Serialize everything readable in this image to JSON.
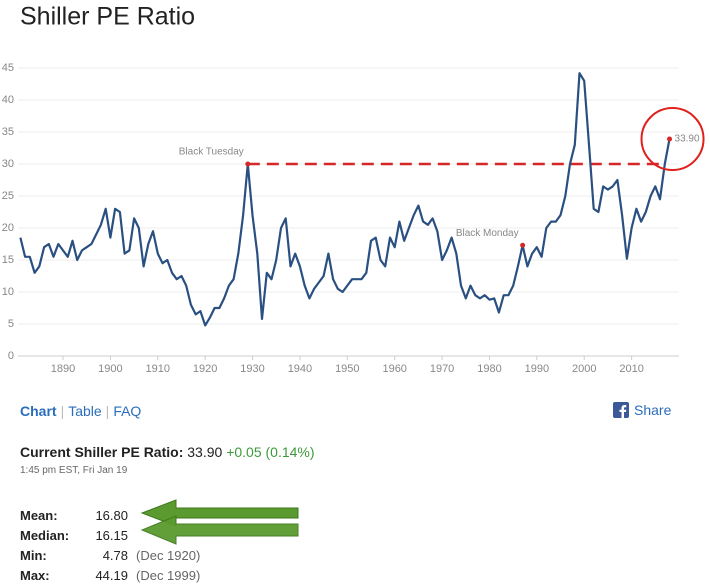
{
  "chart_data": {
    "type": "line",
    "title": "Shiller PE Ratio",
    "x": [
      1881,
      1882,
      1883,
      1884,
      1885,
      1886,
      1887,
      1888,
      1889,
      1890,
      1891,
      1892,
      1893,
      1894,
      1895,
      1896,
      1897,
      1898,
      1899,
      1900,
      1901,
      1902,
      1903,
      1904,
      1905,
      1906,
      1907,
      1908,
      1909,
      1910,
      1911,
      1912,
      1913,
      1914,
      1915,
      1916,
      1917,
      1918,
      1919,
      1920,
      1921,
      1922,
      1923,
      1924,
      1925,
      1926,
      1927,
      1928,
      1929,
      1930,
      1931,
      1932,
      1933,
      1934,
      1935,
      1936,
      1937,
      1938,
      1939,
      1940,
      1941,
      1942,
      1943,
      1944,
      1945,
      1946,
      1947,
      1948,
      1949,
      1950,
      1951,
      1952,
      1953,
      1954,
      1955,
      1956,
      1957,
      1958,
      1959,
      1960,
      1961,
      1962,
      1963,
      1964,
      1965,
      1966,
      1967,
      1968,
      1969,
      1970,
      1971,
      1972,
      1973,
      1974,
      1975,
      1976,
      1977,
      1978,
      1979,
      1980,
      1981,
      1982,
      1983,
      1984,
      1985,
      1986,
      1987,
      1988,
      1989,
      1990,
      1991,
      1992,
      1993,
      1994,
      1995,
      1996,
      1997,
      1998,
      1999,
      2000,
      2001,
      2002,
      2003,
      2004,
      2005,
      2006,
      2007,
      2008,
      2009,
      2010,
      2011,
      2012,
      2013,
      2014,
      2015,
      2016,
      2017,
      2018
    ],
    "values": [
      18.5,
      15.5,
      15.5,
      13,
      14,
      17,
      17.5,
      15.5,
      17.5,
      16.5,
      15.5,
      18,
      15,
      16.5,
      17,
      17.5,
      19,
      20.5,
      23,
      18.5,
      23,
      22.5,
      16,
      16.5,
      21.5,
      20,
      14,
      17.5,
      19.5,
      16,
      14.5,
      15,
      13,
      12,
      12.5,
      11,
      8,
      6.5,
      7,
      4.78,
      6,
      7.5,
      7.5,
      9,
      11,
      12,
      16,
      22,
      30,
      22,
      16,
      5.8,
      13,
      12,
      15,
      20,
      21.5,
      14,
      16,
      14,
      11,
      9,
      10.5,
      11.5,
      12.5,
      16,
      12,
      10.5,
      10,
      11,
      12,
      12,
      12,
      13,
      18,
      18.5,
      15,
      14,
      18.5,
      17,
      21,
      18,
      20,
      22,
      23.5,
      21,
      20.5,
      21.5,
      19.5,
      15,
      16.5,
      18.5,
      16,
      11,
      9,
      11,
      9.5,
      9,
      9.5,
      8.8,
      9,
      6.8,
      9.5,
      9.5,
      11,
      14,
      17.3,
      14,
      16,
      17,
      15.5,
      20,
      21,
      21,
      22,
      25,
      30,
      33,
      44.19,
      43,
      33,
      23,
      22.5,
      26.5,
      26,
      26.5,
      27.5,
      22,
      15.2,
      20,
      23,
      21,
      22.5,
      25,
      26.5,
      24.5,
      30,
      33.9
    ],
    "value_labels": [
      null,
      null,
      null,
      null,
      null,
      null,
      null,
      null,
      null,
      null,
      null,
      null,
      null,
      null,
      null,
      null,
      null,
      null,
      null,
      null,
      null,
      null,
      null,
      null,
      null,
      null,
      null,
      null,
      null,
      null,
      null,
      null,
      null,
      null,
      null,
      null,
      null,
      null,
      null,
      null,
      null,
      null,
      null,
      null,
      null,
      null,
      null,
      null,
      null,
      null,
      null,
      null,
      null,
      null,
      null,
      null,
      null,
      null,
      null,
      null,
      null,
      null,
      null,
      null,
      null,
      null,
      null,
      null,
      null,
      null,
      null,
      null,
      null,
      null,
      null,
      null,
      null,
      null,
      null,
      null,
      null,
      null,
      null,
      null,
      null,
      null,
      null,
      null,
      null,
      null,
      null,
      null,
      null,
      null,
      null,
      null,
      null,
      null,
      null,
      null,
      null,
      null,
      null,
      null,
      null,
      null,
      null,
      null,
      null,
      null,
      null,
      null,
      null,
      null,
      null,
      null,
      null,
      null,
      null,
      null,
      null,
      null,
      null,
      null,
      null,
      null,
      null,
      null,
      null,
      null,
      null,
      null,
      null,
      null,
      null,
      null,
      null,
      "33.90"
    ],
    "color": "#2a5082",
    "xlim": [
      1880.5,
      2020
    ],
    "ylim": [
      0,
      46
    ],
    "xticks": [
      1890,
      1900,
      1910,
      1920,
      1930,
      1940,
      1950,
      1960,
      1970,
      1980,
      1990,
      2000,
      2010
    ],
    "yticks": [
      0,
      5,
      10,
      15,
      20,
      25,
      30,
      35,
      40,
      45
    ],
    "grid": true,
    "annotations": [
      {
        "text": "Black Tuesday",
        "x": 1929,
        "y": 30
      },
      {
        "text": "Black Monday",
        "x": 1987,
        "y": 17.3
      }
    ],
    "reference_line": {
      "y": 30,
      "x": [
        1929,
        2017
      ],
      "color": "#d62728"
    }
  },
  "nav": [
    "Chart",
    "Table",
    "FAQ"
  ],
  "share": "Share",
  "current": {
    "label": "Current Shiller PE Ratio:",
    "value": "33.90",
    "change": "+0.05 (0.14%)",
    "time": "1:45 pm EST, Fri Jan 19"
  },
  "stats": [
    {
      "label": "Mean:",
      "value": "16.80",
      "note": null
    },
    {
      "label": "Median:",
      "value": "16.15",
      "note": null
    },
    {
      "label": "Min:",
      "value": "4.78",
      "note": "(Dec 1920)"
    },
    {
      "label": "Max:",
      "value": "44.19",
      "note": "(Dec 1999)"
    }
  ]
}
